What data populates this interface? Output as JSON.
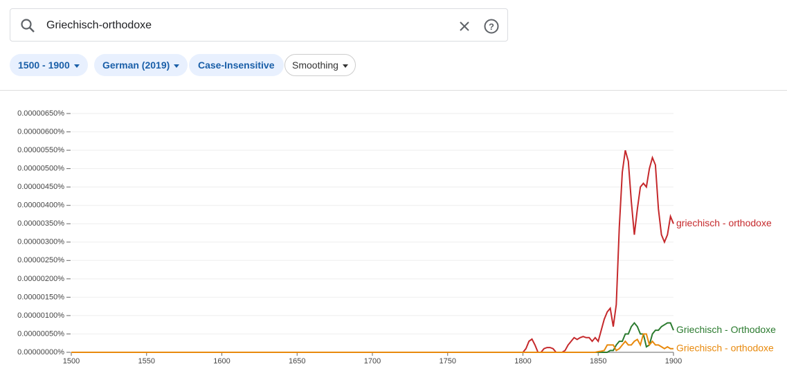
{
  "search": {
    "query": "Griechisch-orthodoxe"
  },
  "filters": [
    "1500 - 1900",
    "German (2019)",
    "Case-Insensitive",
    "Smoothing"
  ],
  "chart_data": {
    "type": "line",
    "x": [
      1500,
      1600,
      1700,
      1798,
      1800,
      1802,
      1804,
      1806,
      1808,
      1810,
      1812,
      1814,
      1816,
      1818,
      1820,
      1822,
      1824,
      1826,
      1828,
      1830,
      1832,
      1834,
      1836,
      1838,
      1840,
      1842,
      1844,
      1846,
      1848,
      1850,
      1852,
      1854,
      1856,
      1858,
      1860,
      1862,
      1864,
      1866,
      1868,
      1870,
      1872,
      1874,
      1876,
      1878,
      1880,
      1882,
      1884,
      1886,
      1888,
      1890,
      1892,
      1894,
      1896,
      1898,
      1900
    ],
    "series": [
      {
        "name": "griechisch - orthodoxe",
        "color": "#c5282b",
        "values": [
          0,
          0,
          0,
          0,
          0,
          1e-07,
          3e-07,
          3.6e-07,
          2e-07,
          0,
          0,
          1e-07,
          1.3e-07,
          1.3e-07,
          1e-07,
          0,
          0,
          0,
          5e-08,
          2e-07,
          3e-07,
          4e-07,
          3.5e-07,
          4e-07,
          4.3e-07,
          4e-07,
          4e-07,
          3e-07,
          4e-07,
          3e-07,
          6e-07,
          9e-07,
          1.1e-06,
          1.2e-06,
          7e-07,
          1.3e-06,
          3.4e-06,
          4.9e-06,
          5.5e-06,
          5.2e-06,
          4.1e-06,
          3.2e-06,
          3.9e-06,
          4.5e-06,
          4.6e-06,
          4.5e-06,
          5e-06,
          5.3e-06,
          5.1e-06,
          3.9e-06,
          3.2e-06,
          3e-06,
          3.2e-06,
          3.7e-06,
          3.5e-06
        ]
      },
      {
        "name": "Griechisch - Orthodoxe",
        "color": "#2a7a2e",
        "values": [
          0,
          0,
          0,
          0,
          0,
          0,
          0,
          0,
          0,
          0,
          0,
          0,
          0,
          0,
          0,
          0,
          0,
          0,
          0,
          0,
          0,
          0,
          0,
          0,
          0,
          0,
          0,
          0,
          0,
          0,
          0,
          0,
          0,
          5e-08,
          5e-08,
          2e-07,
          3e-07,
          3e-07,
          5e-07,
          5e-07,
          7e-07,
          8e-07,
          7e-07,
          5e-07,
          5e-07,
          1.5e-07,
          2e-07,
          5e-07,
          6e-07,
          6e-07,
          7e-07,
          7.5e-07,
          8e-07,
          8e-07,
          6e-07
        ]
      },
      {
        "name": "Griechisch - orthodoxe",
        "color": "#e8890c",
        "values": [
          0,
          0,
          0,
          0,
          0,
          0,
          0,
          0,
          0,
          0,
          0,
          0,
          0,
          0,
          0,
          0,
          0,
          0,
          0,
          0,
          0,
          0,
          0,
          0,
          0,
          0,
          0,
          0,
          0,
          2e-08,
          3e-08,
          5e-08,
          2e-07,
          2e-07,
          2e-07,
          5e-08,
          1e-07,
          2e-07,
          3e-07,
          2e-07,
          2e-07,
          3e-07,
          3.5e-07,
          2e-07,
          5e-07,
          5e-07,
          2e-07,
          3e-07,
          2e-07,
          2e-07,
          1.5e-07,
          1e-07,
          1.5e-07,
          1e-07,
          1e-07
        ]
      }
    ],
    "xlim": [
      1500,
      1900
    ],
    "xticks": [
      1500,
      1550,
      1600,
      1650,
      1700,
      1750,
      1800,
      1850,
      1900
    ],
    "ylim": [
      0,
      6.5e-06
    ],
    "yticks": [
      {
        "value": 0,
        "label": "0.00000000%"
      },
      {
        "value": 5e-07,
        "label": "0.00000050%"
      },
      {
        "value": 1e-06,
        "label": "0.00000100%"
      },
      {
        "value": 1.5e-06,
        "label": "0.00000150%"
      },
      {
        "value": 2e-06,
        "label": "0.00000200%"
      },
      {
        "value": 2.5e-06,
        "label": "0.00000250%"
      },
      {
        "value": 3e-06,
        "label": "0.00000300%"
      },
      {
        "value": 3.5e-06,
        "label": "0.00000350%"
      },
      {
        "value": 4e-06,
        "label": "0.00000400%"
      },
      {
        "value": 4.5e-06,
        "label": "0.00000450%"
      },
      {
        "value": 5e-06,
        "label": "0.00000500%"
      },
      {
        "value": 5.5e-06,
        "label": "0.00000550%"
      },
      {
        "value": 6e-06,
        "label": "0.00000600%"
      },
      {
        "value": 6.5e-06,
        "label": "0.00000650%"
      }
    ],
    "grid": true
  }
}
